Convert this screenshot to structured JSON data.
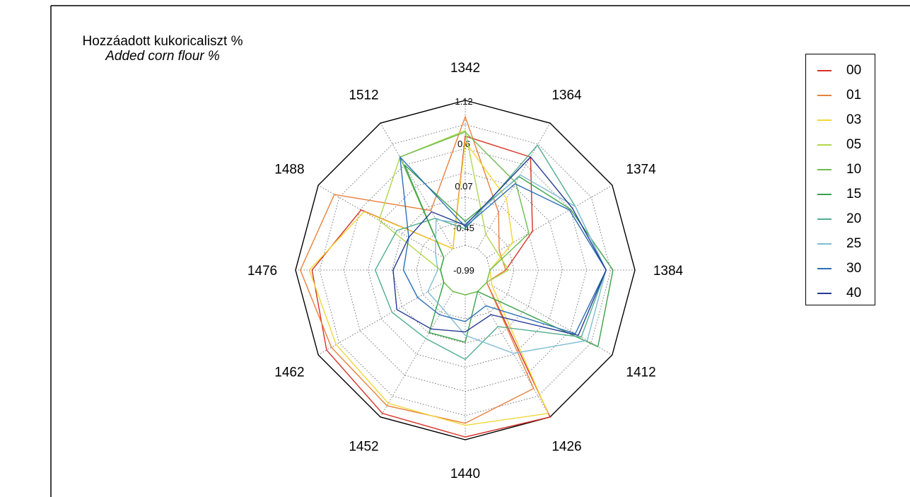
{
  "chart_data": {
    "type": "radar",
    "title": "Hozzáadott kukoricaliszt %",
    "subtitle": "Added corn flour %",
    "axes": [
      "1342",
      "1364",
      "1374",
      "1384",
      "1412",
      "1426",
      "1440",
      "1452",
      "1462",
      "1476",
      "1488",
      "1512"
    ],
    "rlim": [
      -0.99,
      1.12
    ],
    "ticks": [
      "1.12",
      "0.6",
      "0.07",
      "-0.45",
      "-0.99"
    ],
    "legend_position": "right",
    "grid": true,
    "series": [
      {
        "name": "00",
        "color": "#d73027",
        "values": [
          0.6,
          0.55,
          -0.22,
          -0.76,
          -0.99,
          1.12,
          1.08,
          1.06,
          0.98,
          0.88,
          0.4,
          -0.99
        ]
      },
      {
        "name": "01",
        "color": "#e8803b",
        "values": [
          0.88,
          -0.38,
          -0.78,
          -0.76,
          -0.99,
          0.64,
          0.88,
          0.93,
          0.9,
          1.05,
          0.85,
          -0.35
        ]
      },
      {
        "name": "03",
        "color": "#f2d635",
        "values": [
          0.52,
          -0.15,
          -0.55,
          -0.99,
          -0.9,
          1.06,
          0.91,
          0.89,
          0.82,
          0.92,
          0.35,
          -0.99
        ]
      },
      {
        "name": "05",
        "color": "#b1d64b",
        "values": [
          0.68,
          -0.75,
          -0.82,
          -0.72,
          -0.99,
          -0.99,
          -0.99,
          -0.99,
          -0.99,
          -0.99,
          0.1,
          0.55
        ]
      },
      {
        "name": "10",
        "color": "#6dbb50",
        "values": [
          0.66,
          0.12,
          -0.28,
          -0.99,
          -0.99,
          -0.99,
          -0.99,
          -0.99,
          -0.99,
          -0.99,
          -0.99,
          0.55
        ]
      },
      {
        "name": "15",
        "color": "#39a14b",
        "values": [
          -0.64,
          0.22,
          0.42,
          0.8,
          0.88,
          -0.99,
          -0.3,
          -0.3,
          -0.99,
          -0.99,
          -0.99,
          0.42
        ]
      },
      {
        "name": "20",
        "color": "#52ad8c",
        "values": [
          -0.75,
          0.75,
          0.5,
          0.7,
          0.6,
          -0.4,
          -0.05,
          -0.2,
          -0.12,
          -0.04,
          -0.2,
          -0.48
        ]
      },
      {
        "name": "25",
        "color": "#7fbcd4",
        "values": [
          -0.68,
          0.25,
          0.5,
          0.7,
          0.7,
          0.05,
          -0.4,
          -0.7,
          -0.72,
          -0.95,
          -0.85,
          -0.5
        ]
      },
      {
        "name": "30",
        "color": "#2b6fb6",
        "values": [
          -0.72,
          0.1,
          0.4,
          0.7,
          0.5,
          -0.75,
          -0.6,
          -0.6,
          -0.55,
          -0.45,
          -0.4,
          0.55
        ]
      },
      {
        "name": "40",
        "color": "#253a93",
        "values": [
          -0.7,
          0.55,
          0.45,
          0.7,
          0.55,
          -0.6,
          -0.45,
          -0.36,
          -0.2,
          -0.3,
          -0.4,
          -0.37
        ]
      }
    ]
  }
}
